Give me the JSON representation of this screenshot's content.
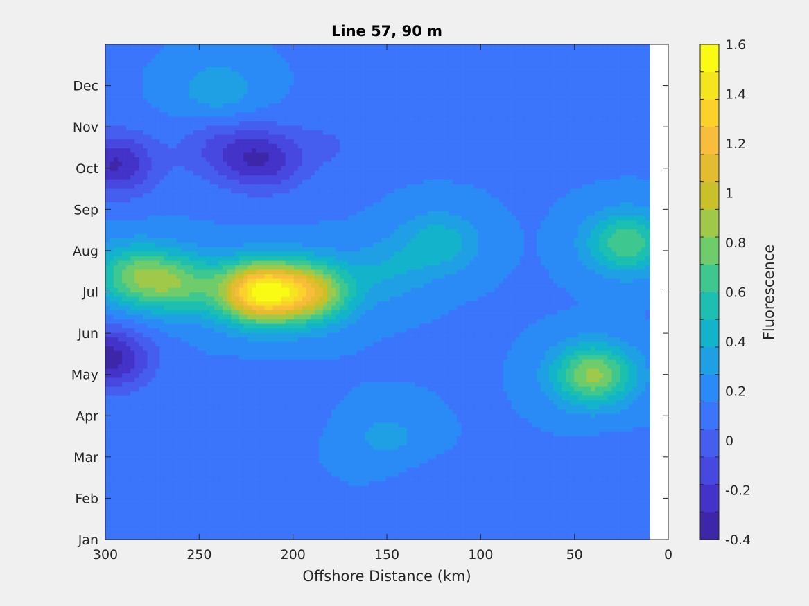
{
  "chart_data": {
    "type": "heatmap",
    "title": "Line 57, 90 m",
    "xlabel": "Offshore Distance (km)",
    "ylabel": "",
    "xlim": [
      300,
      0
    ],
    "x_reversed": true,
    "data_xlim": [
      300,
      10
    ],
    "x_ticks": [
      "300",
      "250",
      "200",
      "150",
      "100",
      "50",
      "0"
    ],
    "x_tick_values": [
      300,
      250,
      200,
      150,
      100,
      50,
      0
    ],
    "y_ticks": [
      "Jan",
      "Feb",
      "Mar",
      "Apr",
      "May",
      "Jun",
      "Jul",
      "Aug",
      "Sep",
      "Oct",
      "Nov",
      "Dec"
    ],
    "ylim": [
      0,
      12
    ],
    "colorbar": {
      "label": "Fluorescence",
      "min": -0.4,
      "max": 1.6,
      "step": 0.1,
      "tick_labels": [
        "-0.4",
        "-0.2",
        "0",
        "0.2",
        "0.4",
        "0.6",
        "0.8",
        "1",
        "1.2",
        "1.4",
        "1.6"
      ],
      "tick_values": [
        -0.4,
        -0.2,
        0,
        0.2,
        0.4,
        0.6,
        0.8,
        1.0,
        1.2,
        1.4,
        1.6
      ],
      "colors": [
        "#3e26a8",
        "#4433c8",
        "#4748e0",
        "#455eef",
        "#3b75fb",
        "#2b8bf6",
        "#20a0e4",
        "#13b3cc",
        "#1cbfb0",
        "#3ec88f",
        "#6fcc6a",
        "#a0c94a",
        "#c9c129",
        "#e4bc30",
        "#f8be3b",
        "#fbd22c",
        "#f5e51f",
        "#f9fb15"
      ]
    },
    "features": [
      {
        "x": 295,
        "y": 9.1,
        "value": -0.3
      },
      {
        "x": 216,
        "y": 9.2,
        "value": -0.25
      },
      {
        "x": 240,
        "y": 9.5,
        "value": -0.05
      },
      {
        "x": 180,
        "y": 9.6,
        "value": 0.05
      },
      {
        "x": 285,
        "y": 6.4,
        "value": 0.7
      },
      {
        "x": 260,
        "y": 6.2,
        "value": 0.65
      },
      {
        "x": 218,
        "y": 6.0,
        "value": 1.4
      },
      {
        "x": 190,
        "y": 6.0,
        "value": 0.95
      },
      {
        "x": 298,
        "y": 4.4,
        "value": -0.35
      },
      {
        "x": 213,
        "y": 3.3,
        "value": 0.05
      },
      {
        "x": 240,
        "y": 10.9,
        "value": 0.35
      },
      {
        "x": 22,
        "y": 7.2,
        "value": 0.7
      },
      {
        "x": 40,
        "y": 4.0,
        "value": 0.85
      },
      {
        "x": 122,
        "y": 7.2,
        "value": 0.45
      },
      {
        "x": 30,
        "y": 1.5,
        "value": 0.05
      },
      {
        "x": 125,
        "y": 1.0,
        "value": 0.05
      },
      {
        "x": 35,
        "y": 10.4,
        "value": 0.05
      },
      {
        "x": 150,
        "y": 6.5,
        "value": 0.35
      },
      {
        "x": 285,
        "y": 0.5,
        "value": 0.1
      },
      {
        "x": 150,
        "y": 2.5,
        "value": 0.3
      }
    ]
  }
}
